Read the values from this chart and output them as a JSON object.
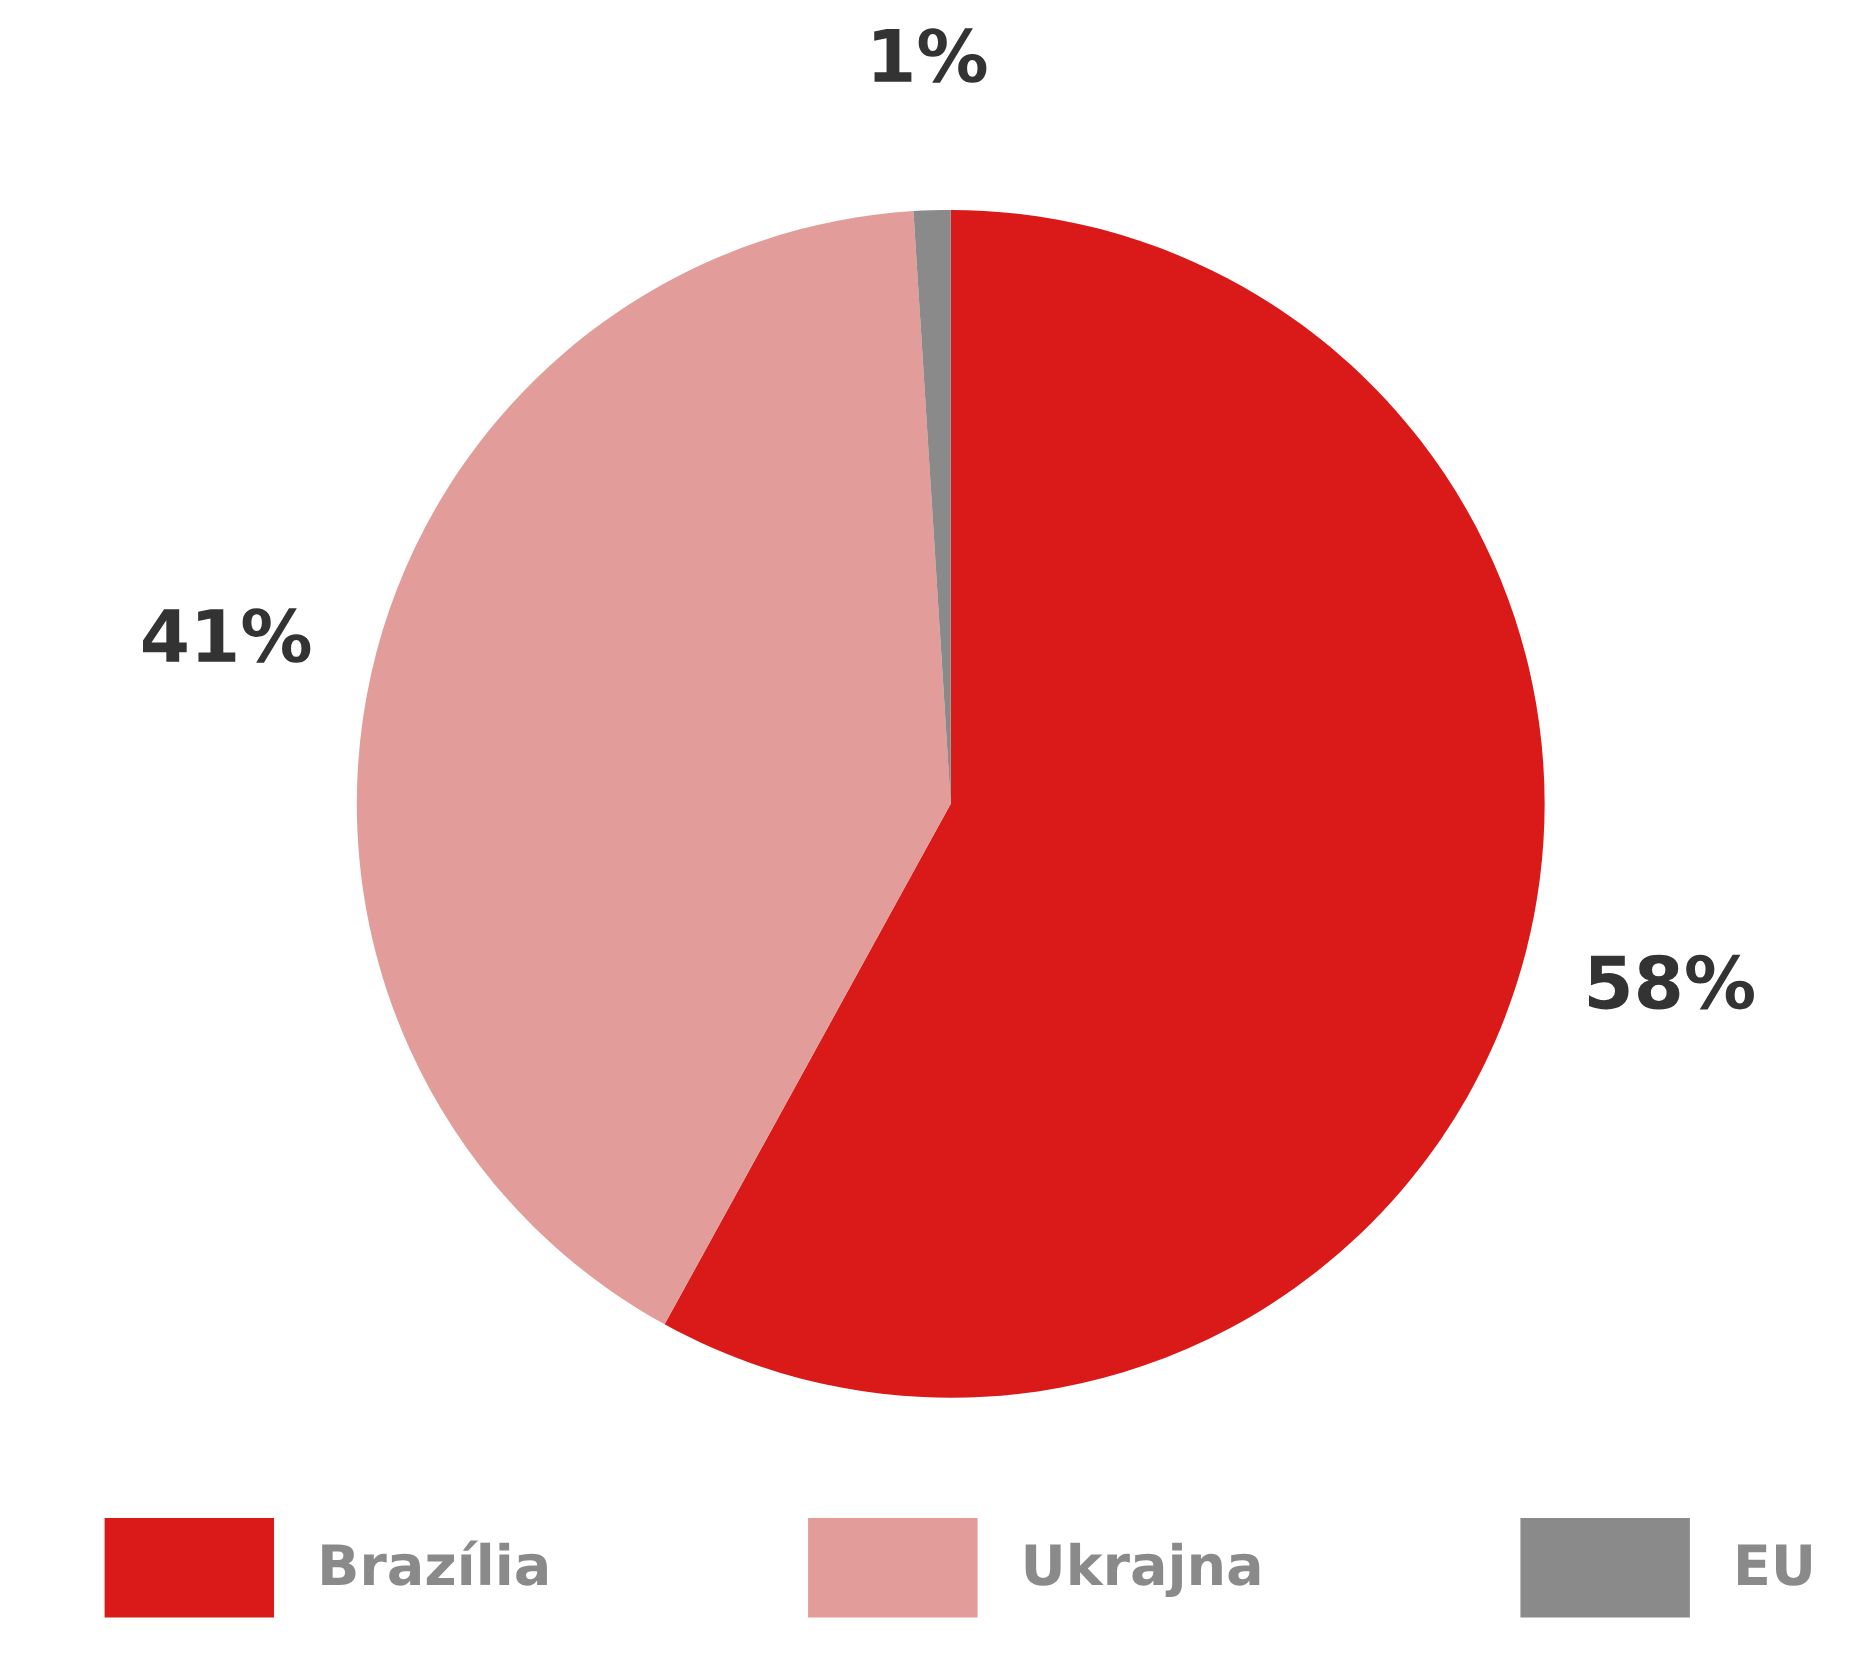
{
  "chart_data": {
    "type": "pie",
    "categories": [
      "Brazília",
      "Ukrajna",
      "EU"
    ],
    "values": [
      58,
      41,
      1
    ],
    "colors": [
      "#d91a18",
      "#e29c99",
      "#8a8a8a"
    ],
    "value_labels": [
      "58%",
      "41%",
      "1%"
    ],
    "legend": "bottom"
  }
}
